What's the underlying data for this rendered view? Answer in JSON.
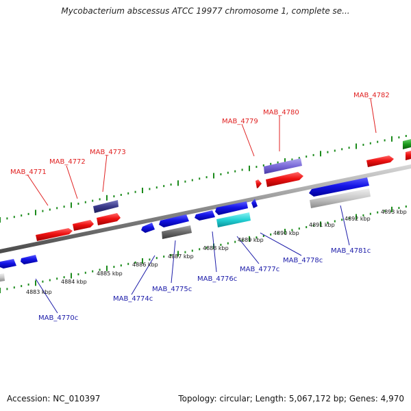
{
  "title": "Mycobacterium abscessus ATCC 19977 chromosome 1, complete se...",
  "footer": {
    "accession": "Accession: NC_010397",
    "summary": "Topology: circular; Length: 5,067,172 bp; Genes: 4,970"
  },
  "colors": {
    "forward_label": "#e02020",
    "reverse_label": "#1a1aa8",
    "tick": "#1a8a1a",
    "backbone": "#8a8a8a"
  },
  "scale_labels": [
    "4883 kbp",
    "4884 kbp",
    "4885 kbp",
    "4886 kbp",
    "4887 kbp",
    "4888 kbp",
    "4889 kbp",
    "4890 kbp",
    "4891 kbp",
    "4892 kbp",
    "4893 kbp"
  ],
  "gene_labels": {
    "forward": [
      "MAB_4771",
      "MAB_4772",
      "MAB_4773",
      "MAB_4779",
      "MAB_4780",
      "MAB_4782"
    ],
    "reverse": [
      "MAB_4770c",
      "MAB_4774c",
      "MAB_4775c",
      "MAB_4776c",
      "MAB_4777c",
      "MAB_4778c",
      "MAB_4781c"
    ]
  }
}
